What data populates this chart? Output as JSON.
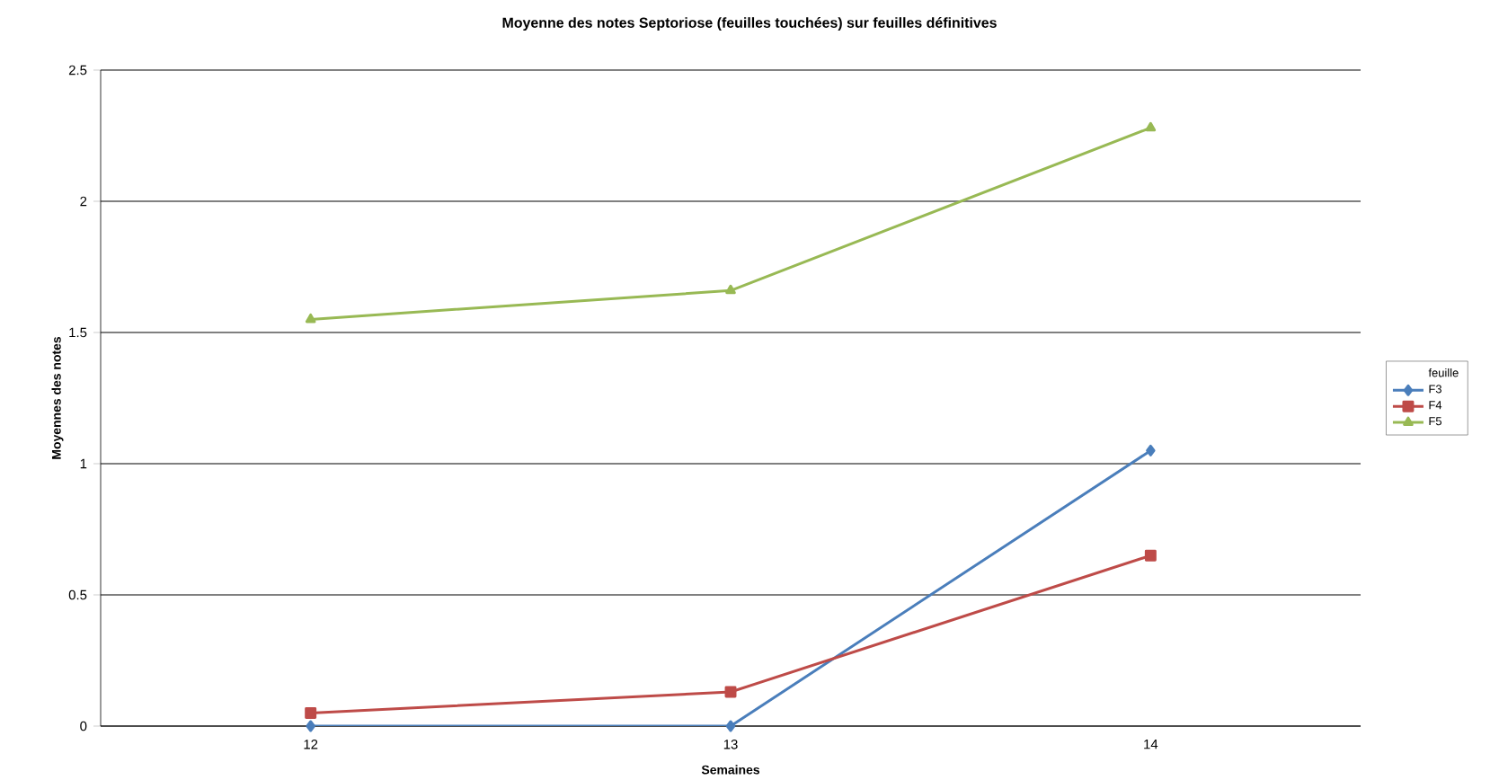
{
  "chart_data": {
    "type": "line",
    "title": "Moyenne des notes Septoriose (feuilles touchées) sur feuilles définitives",
    "xlabel": "Semaines",
    "ylabel": "Moyennes des notes",
    "categories": [
      "12",
      "13",
      "14"
    ],
    "series": [
      {
        "name": "F3",
        "color": "#4a7ebb",
        "marker": "diamond",
        "values": [
          0,
          0,
          1.05
        ]
      },
      {
        "name": "F4",
        "color": "#be4b48",
        "marker": "square",
        "values": [
          0.05,
          0.13,
          0.65
        ]
      },
      {
        "name": "F5",
        "color": "#98b954",
        "marker": "triangle",
        "values": [
          1.55,
          1.66,
          2.28
        ]
      }
    ],
    "ylim": [
      0,
      2.5
    ],
    "yticks": [
      0,
      0.5,
      1,
      1.5,
      2,
      2.5
    ],
    "grid": "y",
    "legend": "right",
    "legend_title": "feuille",
    "line_style": "solid"
  }
}
